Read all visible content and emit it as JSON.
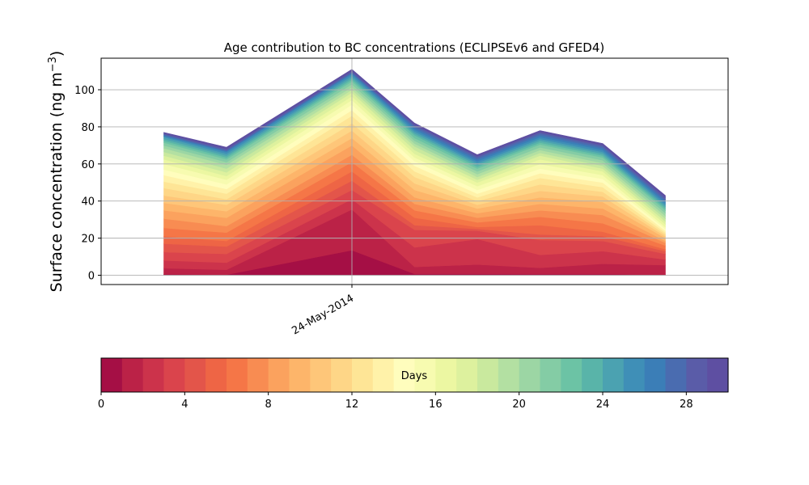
{
  "chart_data": {
    "type": "area",
    "stacked": true,
    "title": "Age contribution to BC concentrations (ECLIPSEv6 and GFED4)",
    "ylabel": "Surface concentration (ng m",
    "ylabel_superscript": "−3",
    "ylabel_suffix": ")",
    "ylim": [
      -5,
      117
    ],
    "yticks": [
      0,
      20,
      40,
      60,
      80,
      100
    ],
    "grid": true,
    "x": [
      "2014-05-21",
      "2014-05-22",
      "2014-05-24",
      "2014-05-25",
      "2014-05-26",
      "2014-05-27",
      "2014-05-28",
      "2014-05-29"
    ],
    "x_axis": {
      "type": "date",
      "ticks": [
        "2014-05-24"
      ],
      "tick_labels": [
        "24-May-2014"
      ],
      "xlim": [
        "2014-05-20",
        "2014-05-30"
      ]
    },
    "totals": [
      77,
      69,
      111,
      82,
      65,
      78,
      71,
      43
    ],
    "cumulative_boundaries": [
      [
        0,
        0,
        0,
        0,
        0,
        0,
        0,
        0
      ],
      [
        0.5,
        0.3,
        13.5,
        0.7,
        0.7,
        0.6,
        0.6,
        0.2
      ],
      [
        3.8,
        3.0,
        35.5,
        4.5,
        5.8,
        4.0,
        6.2,
        5.5
      ],
      [
        8.0,
        6.8,
        41.0,
        15.0,
        19.5,
        11.0,
        13.0,
        8.5
      ],
      [
        12.5,
        11.5,
        46.0,
        24.5,
        24.0,
        19.0,
        18.5,
        11.5
      ],
      [
        17.0,
        15.5,
        51.0,
        27.0,
        25.0,
        22.0,
        21.0,
        13.0
      ],
      [
        21.0,
        18.5,
        56.0,
        31.0,
        26.0,
        27.0,
        23.5,
        14.0
      ],
      [
        25.5,
        23.0,
        61.0,
        35.0,
        28.5,
        31.5,
        28.0,
        16.0
      ],
      [
        30.5,
        26.5,
        65.0,
        38.5,
        31.0,
        35.0,
        32.5,
        17.5
      ],
      [
        35.0,
        31.0,
        70.0,
        42.0,
        33.5,
        38.5,
        36.0,
        18.5
      ],
      [
        39.0,
        34.5,
        74.0,
        46.0,
        36.0,
        42.0,
        39.5,
        20.0
      ],
      [
        43.0,
        38.0,
        78.0,
        49.5,
        38.0,
        45.5,
        42.5,
        21.0
      ],
      [
        47.0,
        41.0,
        82.0,
        53.0,
        40.0,
        49.0,
        45.0,
        22.0
      ],
      [
        50.5,
        44.0,
        86.0,
        56.0,
        42.0,
        52.5,
        47.5,
        23.0
      ],
      [
        54.0,
        46.5,
        89.0,
        59.0,
        44.0,
        55.0,
        50.0,
        24.0
      ],
      [
        57.0,
        49.0,
        92.0,
        61.5,
        46.0,
        57.5,
        52.0,
        25.0
      ],
      [
        60.0,
        51.5,
        94.5,
        63.5,
        48.0,
        60.0,
        54.0,
        26.0
      ],
      [
        62.5,
        53.5,
        96.5,
        65.5,
        50.0,
        62.5,
        56.0,
        27.5
      ],
      [
        64.5,
        55.5,
        98.5,
        67.5,
        51.5,
        64.5,
        57.5,
        29.0
      ],
      [
        66.5,
        57.5,
        100.0,
        69.5,
        53.0,
        66.0,
        59.0,
        30.5
      ],
      [
        68.5,
        59.5,
        101.5,
        71.0,
        54.5,
        67.5,
        60.5,
        32.0
      ],
      [
        70.0,
        61.0,
        103.0,
        72.5,
        56.0,
        69.0,
        62.0,
        33.5
      ],
      [
        71.5,
        62.5,
        104.5,
        74.0,
        57.5,
        70.5,
        63.5,
        35.0
      ],
      [
        72.5,
        63.5,
        105.5,
        75.5,
        58.5,
        71.5,
        64.5,
        36.0
      ],
      [
        73.5,
        64.5,
        106.5,
        76.5,
        59.5,
        72.5,
        65.5,
        37.0
      ],
      [
        74.5,
        65.5,
        107.5,
        77.5,
        60.5,
        73.5,
        66.5,
        38.0
      ],
      [
        75.0,
        66.5,
        108.5,
        78.5,
        61.5,
        74.5,
        67.5,
        39.0
      ],
      [
        75.5,
        67.0,
        109.0,
        79.5,
        62.5,
        75.5,
        68.5,
        40.0
      ],
      [
        76.0,
        67.5,
        109.5,
        80.5,
        63.5,
        76.5,
        69.5,
        41.0
      ],
      [
        76.5,
        68.2,
        110.2,
        81.2,
        64.2,
        77.2,
        70.2,
        42.0
      ],
      [
        77.0,
        69.0,
        111.0,
        82.0,
        65.0,
        78.0,
        71.0,
        43.0
      ]
    ],
    "colorbar": {
      "label": "Days",
      "range": [
        0,
        30
      ],
      "ticks": [
        0,
        4,
        8,
        12,
        16,
        20,
        24,
        28
      ],
      "colors": [
        "#a50f45",
        "#bb2247",
        "#cc334b",
        "#da444c",
        "#e3554a",
        "#ee6545",
        "#f57647",
        "#f88c52",
        "#fba25e",
        "#fdb56a",
        "#fec679",
        "#fed687",
        "#fee596",
        "#fff2a9",
        "#fffdbd",
        "#f7fbb0",
        "#ecf7a2",
        "#ddf19e",
        "#c9e99e",
        "#b3e0a2",
        "#9cd6a4",
        "#84cca5",
        "#6cc3a5",
        "#59b4a9",
        "#4ba2b1",
        "#3f8fb7",
        "#3b7eb7",
        "#4a6cb0",
        "#5a5ca8",
        "#5e4fa2"
      ]
    }
  }
}
